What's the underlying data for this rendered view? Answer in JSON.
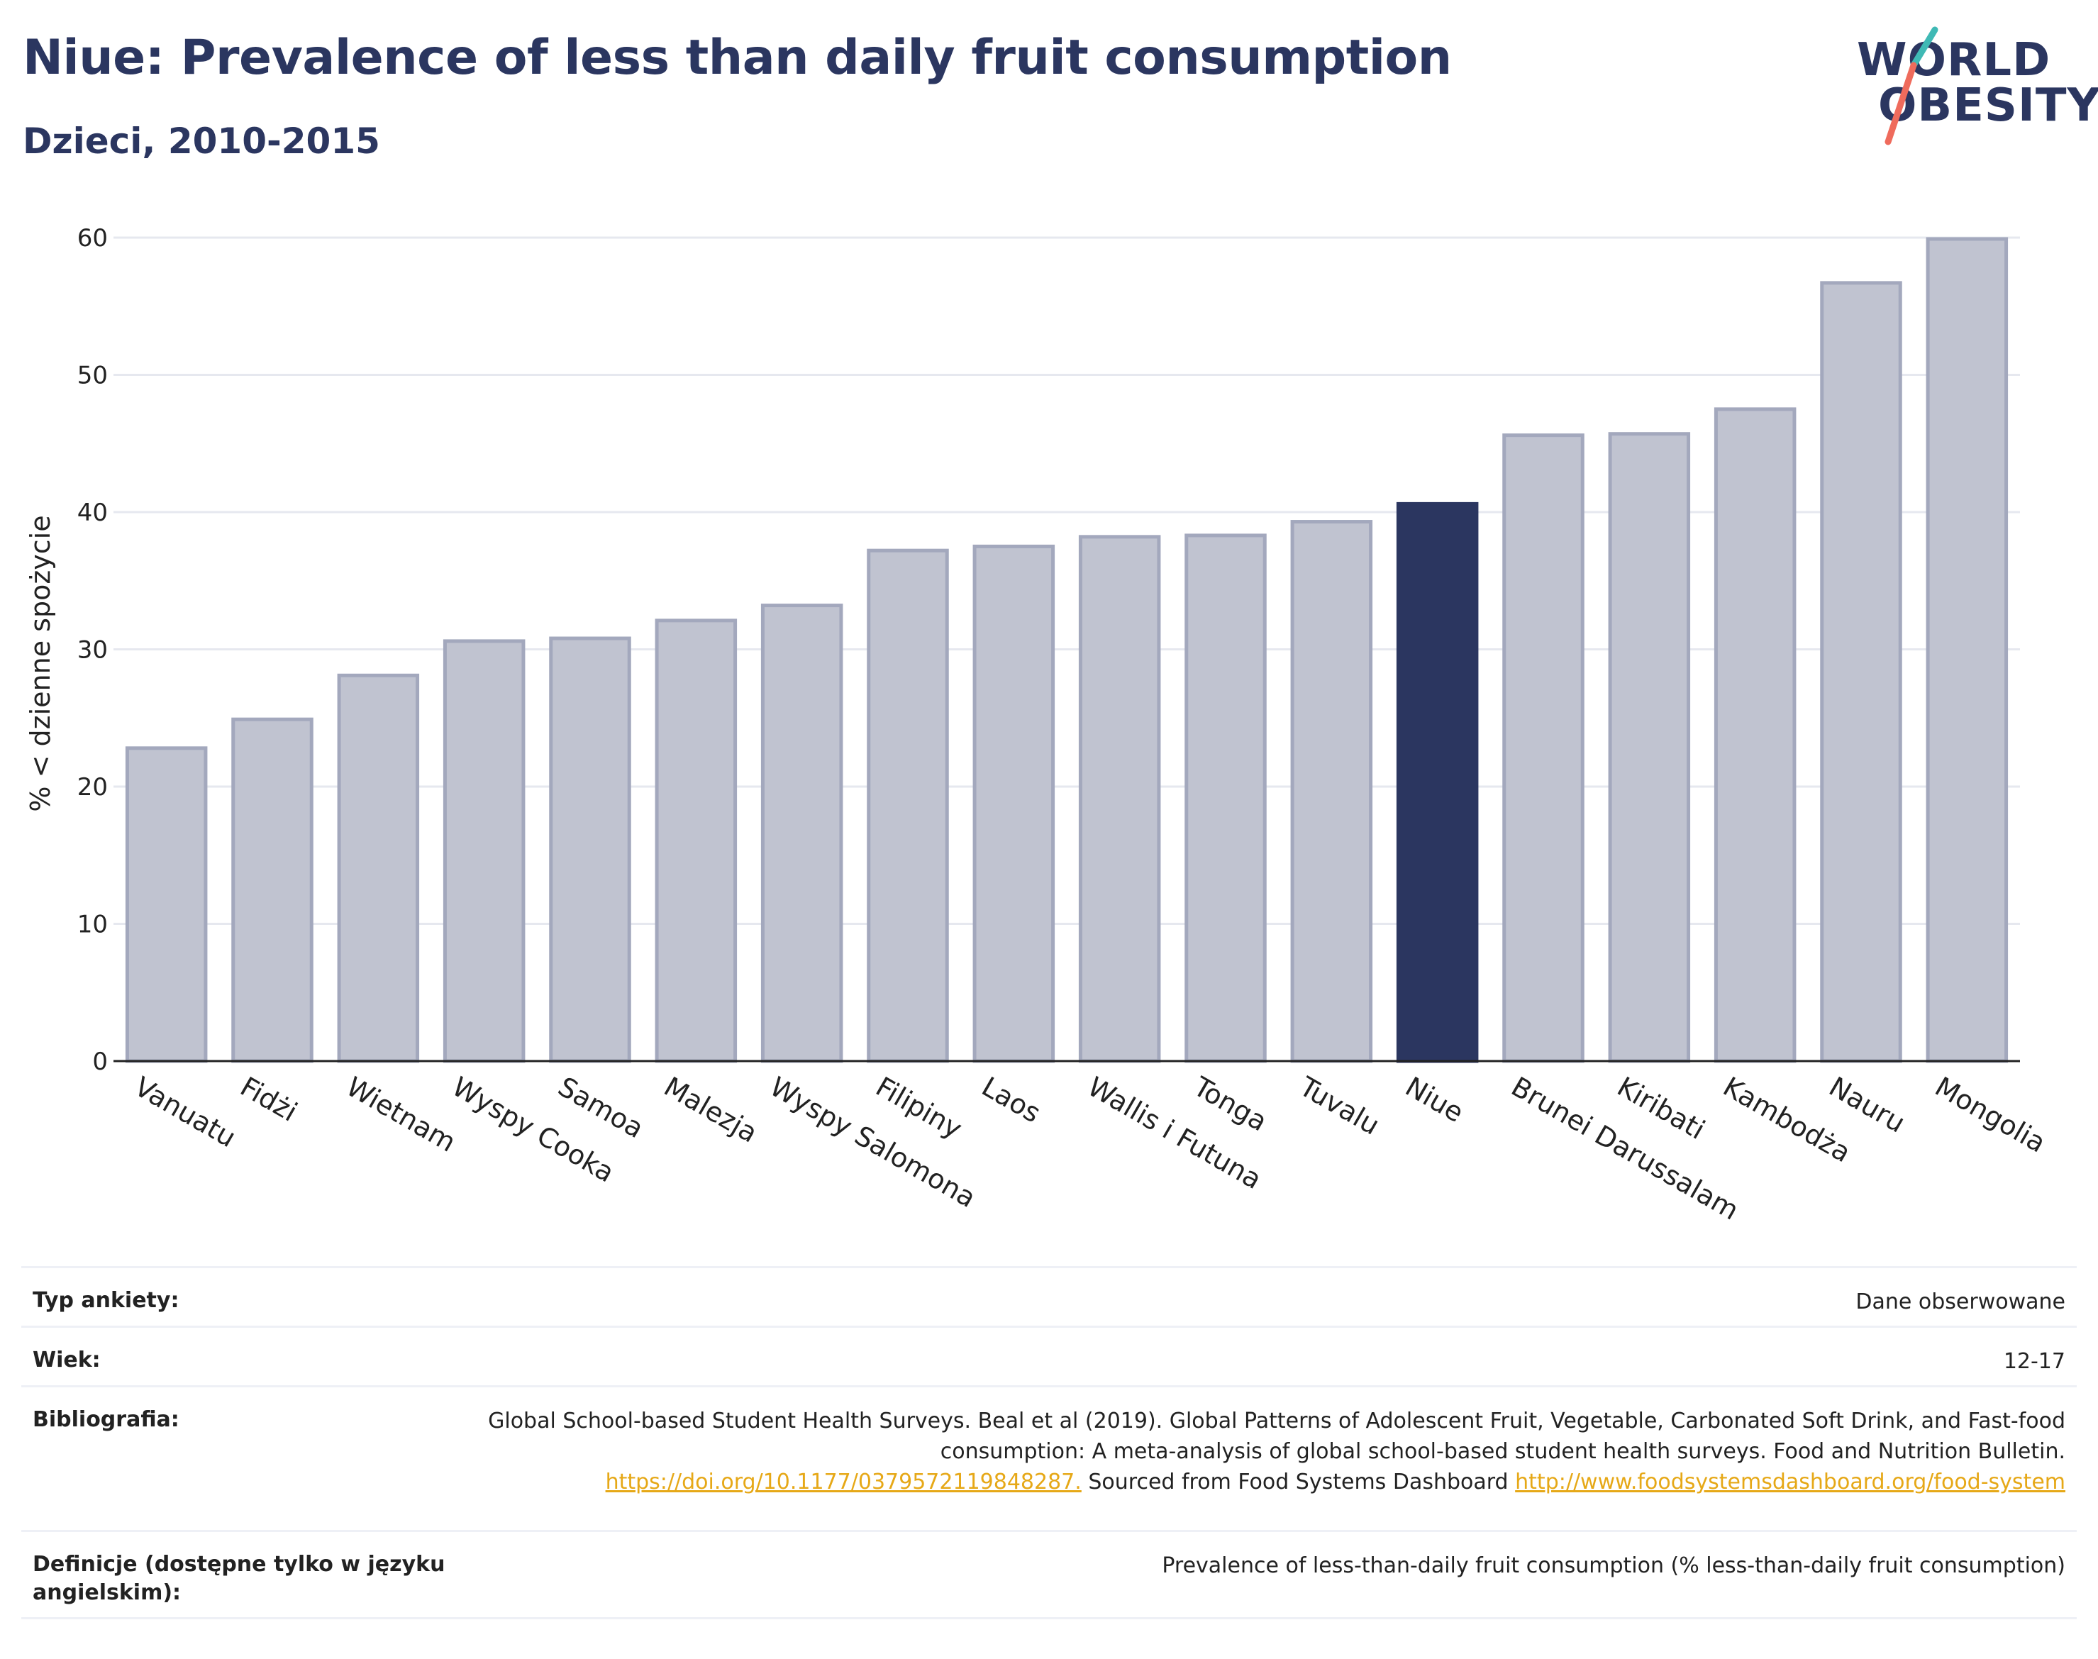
{
  "header": {
    "title": "Niue: Prevalence of less than daily fruit consumption",
    "subtitle": "Dzieci, 2010-2015"
  },
  "logo": {
    "line1": "WORLD",
    "line2": "OBESITY"
  },
  "colors": {
    "highlight": "#2b3660",
    "bar_fill": "#c0c3d0",
    "bar_stroke": "#a3a8bd",
    "logo_teal": "#3fb9b5",
    "logo_coral": "#ef6b5c",
    "link": "#e6a817"
  },
  "chart_data": {
    "type": "bar",
    "title": "Niue: Prevalence of less than daily fruit consumption",
    "subtitle": "Dzieci, 2010-2015",
    "xlabel": "",
    "ylabel": "% < dzienne spożycie",
    "ylim": [
      0,
      60
    ],
    "yticks": [
      0,
      10,
      20,
      30,
      40,
      50,
      60
    ],
    "grid": true,
    "highlight": "Niue",
    "categories": [
      "Vanuatu",
      "Fidżi",
      "Wietnam",
      "Wyspy Cooka",
      "Samoa",
      "Malezja",
      "Wyspy Salomona",
      "Filipiny",
      "Laos",
      "Wallis i Futuna",
      "Tonga",
      "Tuvalu",
      "Niue",
      "Brunei Darussalam",
      "Kiribati",
      "Kambodża",
      "Nauru",
      "Mongolia"
    ],
    "values": [
      22.8,
      24.9,
      28.1,
      30.6,
      30.8,
      32.1,
      33.2,
      37.2,
      37.5,
      38.2,
      38.3,
      39.3,
      40.6,
      45.6,
      45.7,
      47.5,
      56.7,
      59.9
    ]
  },
  "info": {
    "survey_type_label": "Typ ankiety:",
    "survey_type_value": "Dane obserwowane",
    "age_label": "Wiek:",
    "age_value": "12-17",
    "bibliography_label": "Bibliografia:",
    "bibliography_text_1": "Global School-based Student Health Surveys. Beal et al (2019). Global Patterns of Adolescent Fruit, Vegetable, Carbonated Soft Drink, and Fast-food consumption: A meta-analysis of global school-based student health surveys. Food and Nutrition Bulletin.",
    "bibliography_link_1": "https://doi.org/10.1177/0379572119848287.",
    "bibliography_text_2": "Sourced from Food Systems Dashboard",
    "bibliography_link_2": "http://www.foodsystemsdashboard.org/food-system",
    "definition_label": "Definicje (dostępne tylko w języku angielskim):",
    "definition_value": "Prevalence of less-than-daily fruit consumption (% less-than-daily fruit consumption)"
  }
}
